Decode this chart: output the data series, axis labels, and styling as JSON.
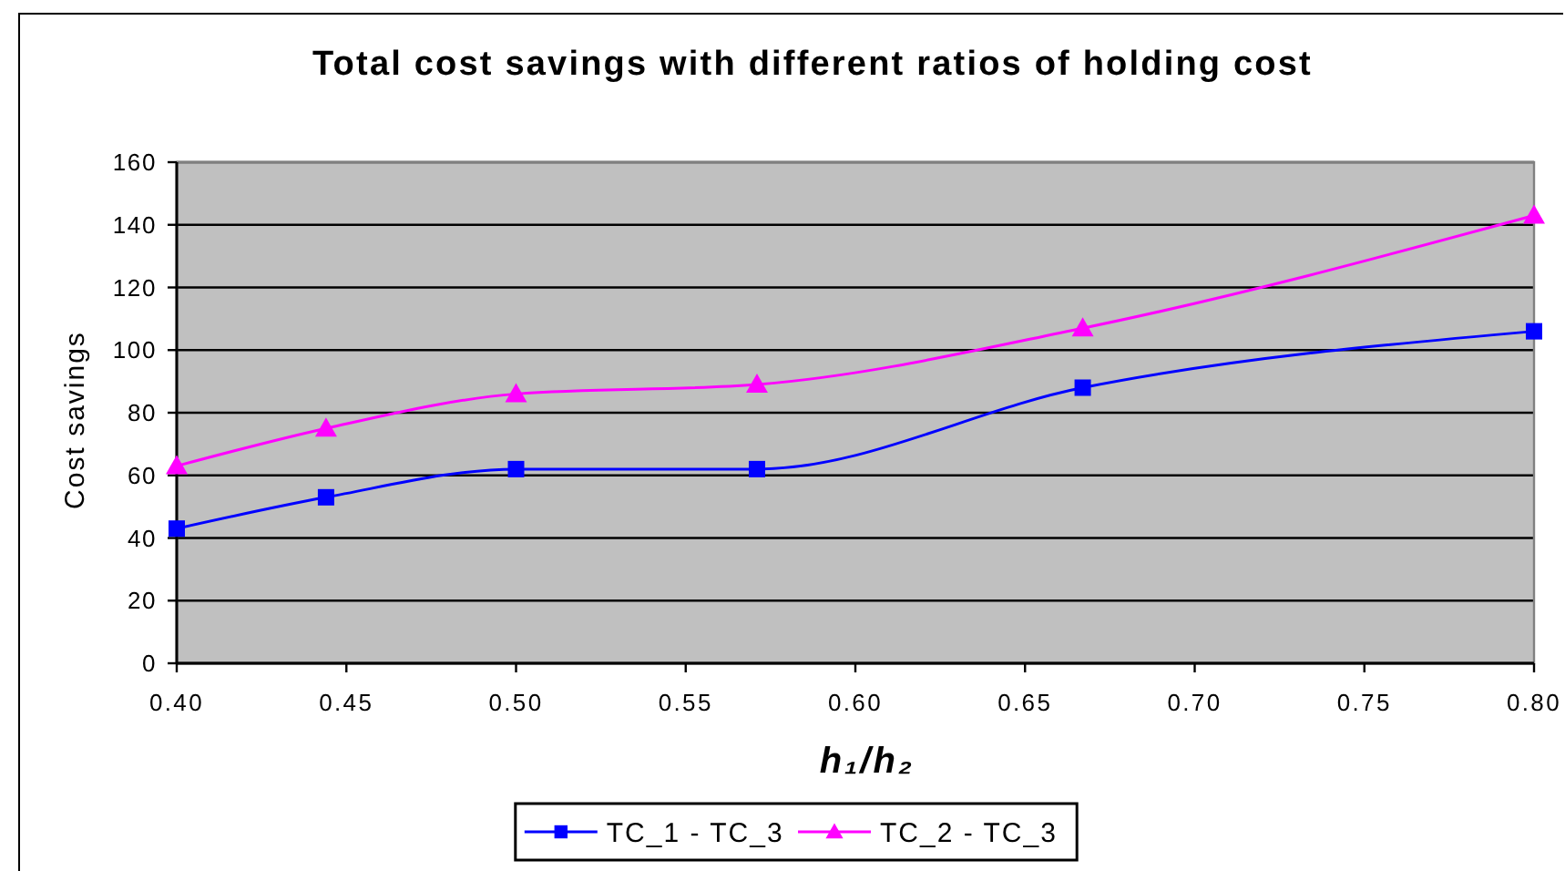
{
  "chart_data": {
    "type": "line",
    "title": "Total cost savings with different ratios of holding cost",
    "xlabel": "h₁/h₂",
    "ylabel": "Cost savings",
    "x": [
      0.4,
      0.444,
      0.5,
      0.571,
      0.667,
      0.8
    ],
    "series": [
      {
        "name": "TC_1 - TC_3",
        "color": "#0000ff",
        "marker": "square",
        "values": [
          43,
          53,
          62,
          62,
          88,
          106
        ]
      },
      {
        "name": "TC_2 - TC_3",
        "color": "#ff00ff",
        "marker": "triangle",
        "values": [
          63,
          75,
          86,
          89,
          107,
          143
        ]
      }
    ],
    "xlim": [
      0.4,
      0.8
    ],
    "xticks": [
      {
        "value": 0.4,
        "label": "0.40"
      },
      0.45,
      {
        "value": 0.5,
        "label": "0.50"
      },
      0.55,
      {
        "value": 0.6,
        "label": "0.60"
      },
      0.65,
      {
        "value": 0.7,
        "label": "0.70"
      },
      0.75,
      {
        "value": 0.8,
        "label": "0.80"
      }
    ],
    "ylim": [
      0,
      160
    ],
    "yticks": [
      0,
      20,
      40,
      60,
      80,
      100,
      120,
      140,
      160
    ],
    "grid": "y",
    "legend": "bottom",
    "line_style": "solid"
  }
}
